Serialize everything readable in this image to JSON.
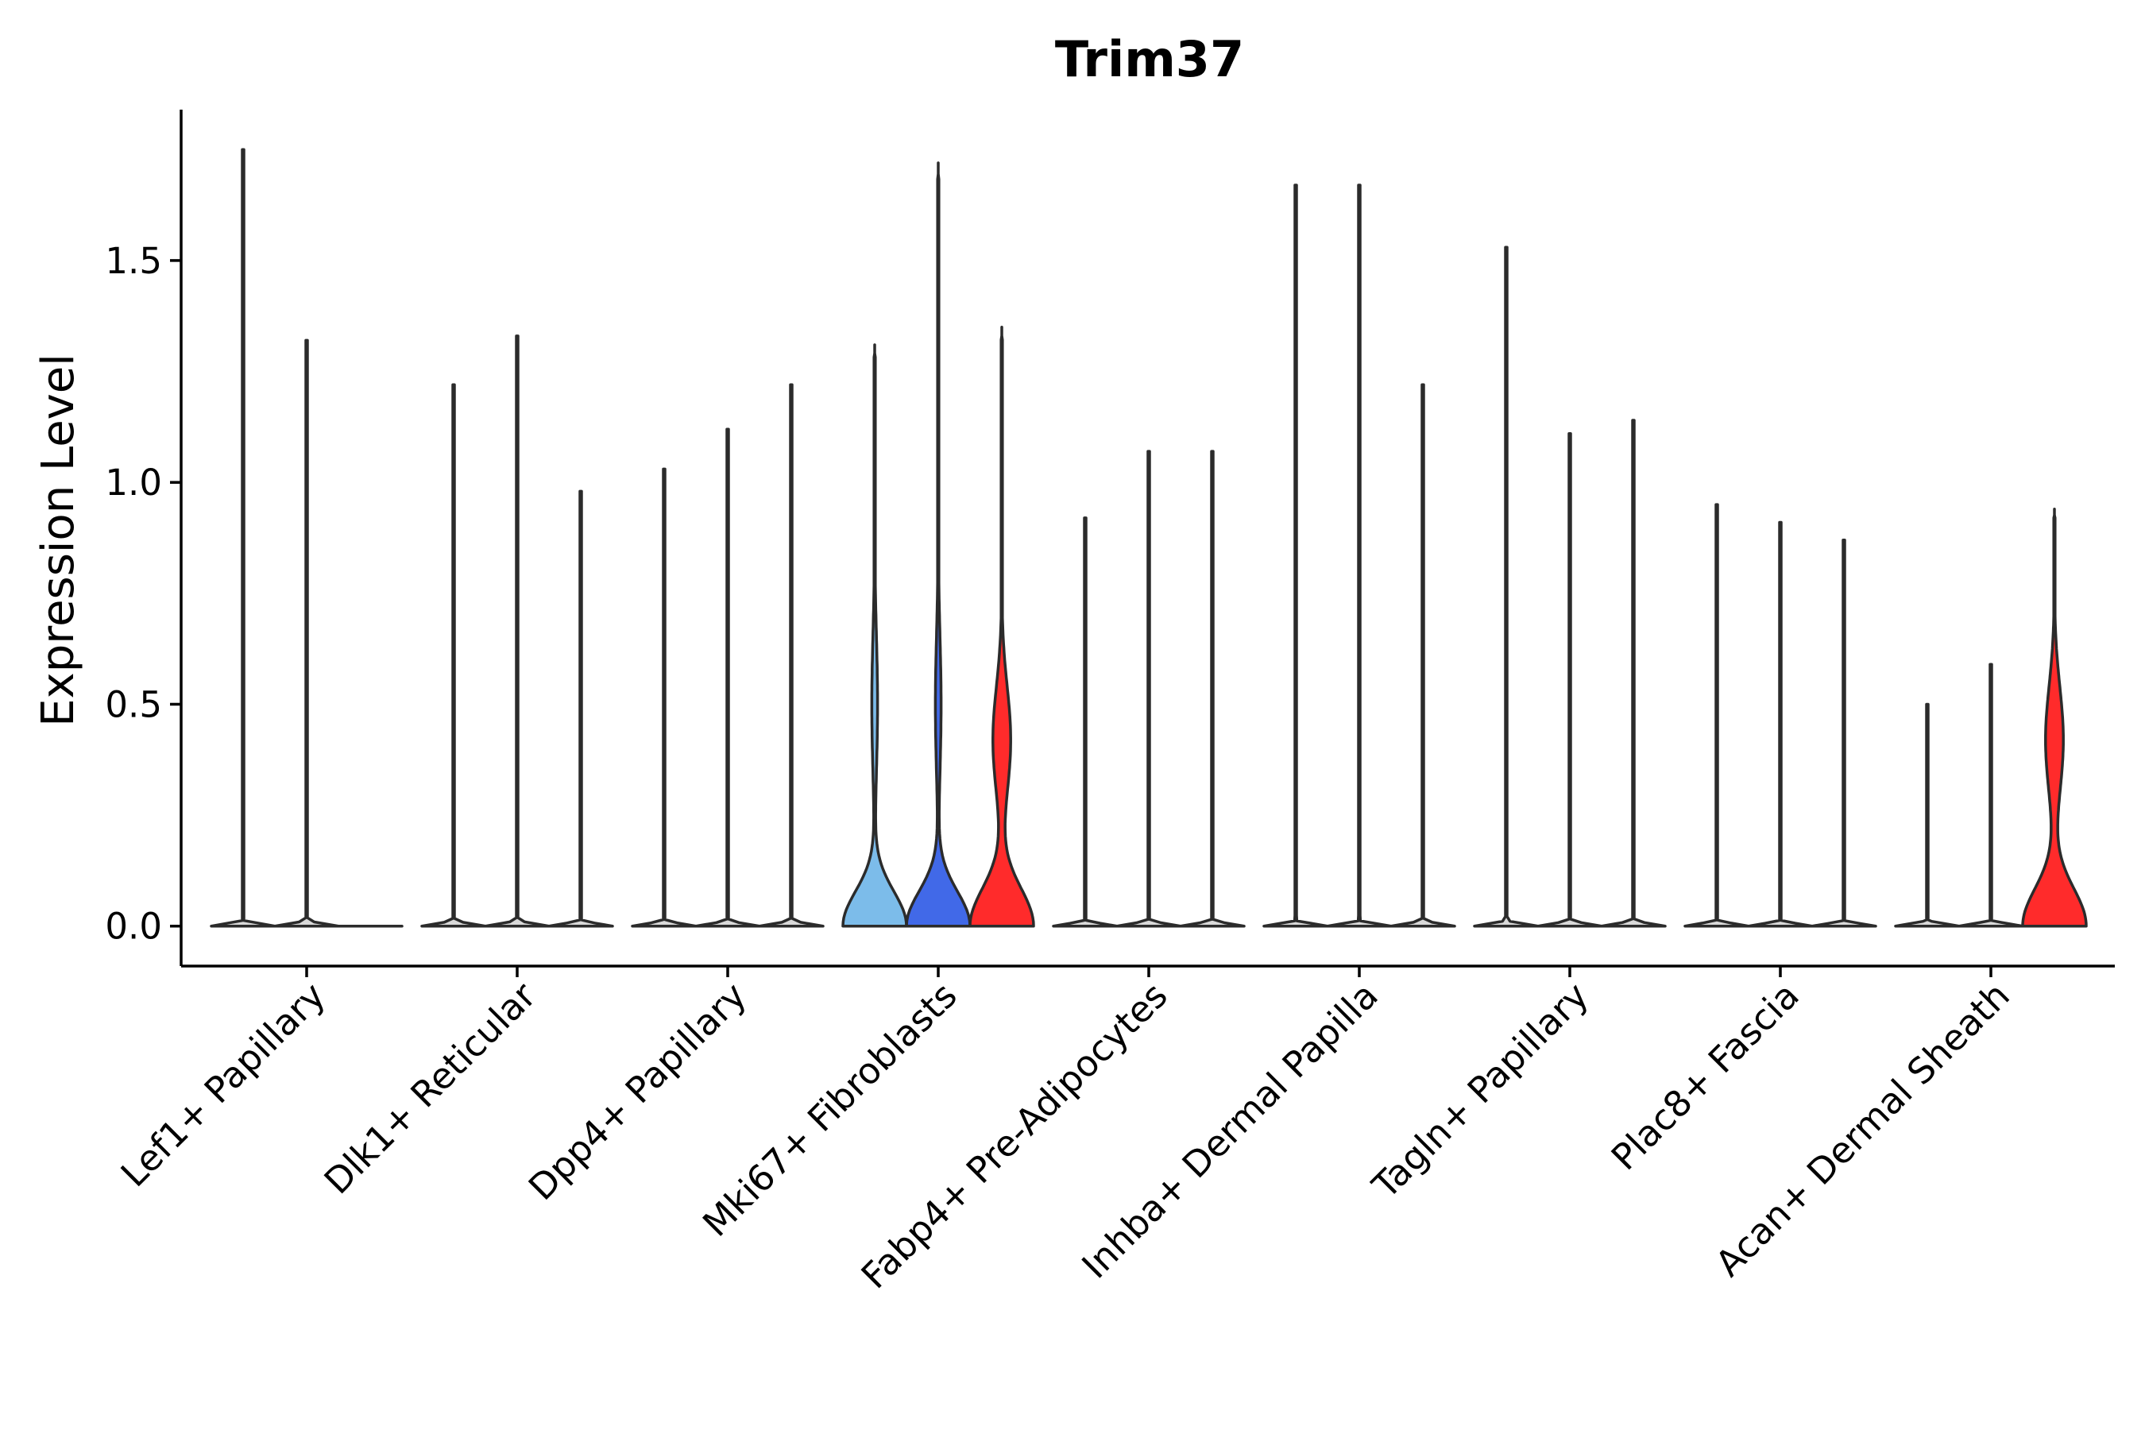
{
  "chart_data": {
    "type": "violin",
    "title": "Trim37",
    "xlabel": "",
    "ylabel": "Expression Level",
    "ylim": [
      -0.09,
      1.84
    ],
    "yticks": [
      0.0,
      0.5,
      1.0,
      1.5
    ],
    "ytick_labels": [
      "0.0",
      "0.5",
      "1.0",
      "1.5"
    ],
    "grid": false,
    "legend": "none",
    "colors": {
      "default": "#d9d9d9",
      "light_blue": "#7cbcea",
      "blue": "#4169e8",
      "red": "#ff2b2b"
    },
    "categories": [
      "Lef1+ Papillary",
      "Dlk1+ Reticular",
      "Dpp4+ Papillary",
      "Mki67+ Fibroblasts",
      "Fabp4+ Pre-Adipocytes",
      "Inhba+ Dermal Papilla",
      "Tagln+ Papillary",
      "Plac8+ Fascia",
      "Acan+ Dermal Sheath"
    ],
    "groups": [
      {
        "category": "Lef1+ Papillary",
        "violins": [
          {
            "position": 1,
            "max": 1.75,
            "shape": "flat",
            "color": "default"
          },
          {
            "position": 2,
            "max": 1.32,
            "shape": "flat",
            "color": "default"
          },
          {
            "position": 3,
            "max": 0.0,
            "shape": "flat",
            "color": "default"
          }
        ]
      },
      {
        "category": "Dlk1+ Reticular",
        "violins": [
          {
            "position": 1,
            "max": 1.22,
            "shape": "flat",
            "color": "default"
          },
          {
            "position": 2,
            "max": 1.33,
            "shape": "flat",
            "color": "default"
          },
          {
            "position": 3,
            "max": 0.98,
            "shape": "flat",
            "color": "default"
          }
        ]
      },
      {
        "category": "Dpp4+ Papillary",
        "violins": [
          {
            "position": 1,
            "max": 1.03,
            "shape": "flat",
            "color": "default"
          },
          {
            "position": 2,
            "max": 1.12,
            "shape": "flat",
            "color": "default"
          },
          {
            "position": 3,
            "max": 1.22,
            "shape": "flat",
            "color": "default"
          }
        ]
      },
      {
        "category": "Mki67+ Fibroblasts",
        "violins": [
          {
            "position": 1,
            "max": 1.31,
            "shape": "bulb",
            "color": "light_blue"
          },
          {
            "position": 2,
            "max": 1.72,
            "shape": "bulb",
            "color": "blue"
          },
          {
            "position": 3,
            "max": 1.35,
            "shape": "bulb2",
            "color": "red"
          }
        ]
      },
      {
        "category": "Fabp4+ Pre-Adipocytes",
        "violins": [
          {
            "position": 1,
            "max": 0.92,
            "shape": "flat",
            "color": "default"
          },
          {
            "position": 2,
            "max": 1.07,
            "shape": "flat",
            "color": "default"
          },
          {
            "position": 3,
            "max": 1.07,
            "shape": "flat",
            "color": "default"
          }
        ]
      },
      {
        "category": "Inhba+ Dermal Papilla",
        "violins": [
          {
            "position": 1,
            "max": 1.67,
            "shape": "flat",
            "color": "default"
          },
          {
            "position": 2,
            "max": 1.67,
            "shape": "flat",
            "color": "default"
          },
          {
            "position": 3,
            "max": 1.22,
            "shape": "flat",
            "color": "default"
          }
        ]
      },
      {
        "category": "Tagln+ Papillary",
        "violins": [
          {
            "position": 1,
            "max": 1.53,
            "shape": "flat",
            "color": "default"
          },
          {
            "position": 2,
            "max": 1.11,
            "shape": "flat",
            "color": "default"
          },
          {
            "position": 3,
            "max": 1.14,
            "shape": "flat",
            "color": "default"
          }
        ]
      },
      {
        "category": "Plac8+ Fascia",
        "violins": [
          {
            "position": 1,
            "max": 0.95,
            "shape": "flat",
            "color": "default"
          },
          {
            "position": 2,
            "max": 0.91,
            "shape": "flat",
            "color": "default"
          },
          {
            "position": 3,
            "max": 0.87,
            "shape": "flat",
            "color": "default"
          }
        ]
      },
      {
        "category": "Acan+ Dermal Sheath",
        "violins": [
          {
            "position": 1,
            "max": 0.5,
            "shape": "flat",
            "color": "default"
          },
          {
            "position": 2,
            "max": 0.59,
            "shape": "flat",
            "color": "default"
          },
          {
            "position": 3,
            "max": 0.94,
            "shape": "bulb2",
            "color": "red"
          }
        ]
      }
    ]
  }
}
